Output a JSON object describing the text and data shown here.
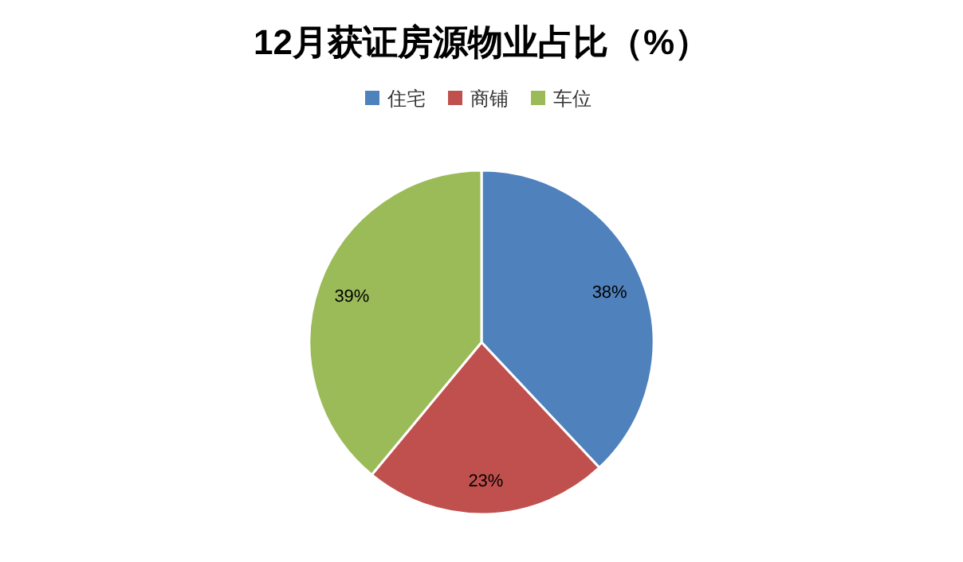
{
  "chart_data": {
    "type": "pie",
    "title": "12月获证房源物业占比（%）",
    "categories": [
      "住宅",
      "商铺",
      "车位"
    ],
    "values": [
      38,
      23,
      39
    ],
    "colors": [
      "#4f81bd",
      "#c0504d",
      "#9bbb59"
    ],
    "value_labels": [
      "38%",
      "23%",
      "39%"
    ],
    "legend": "top"
  }
}
